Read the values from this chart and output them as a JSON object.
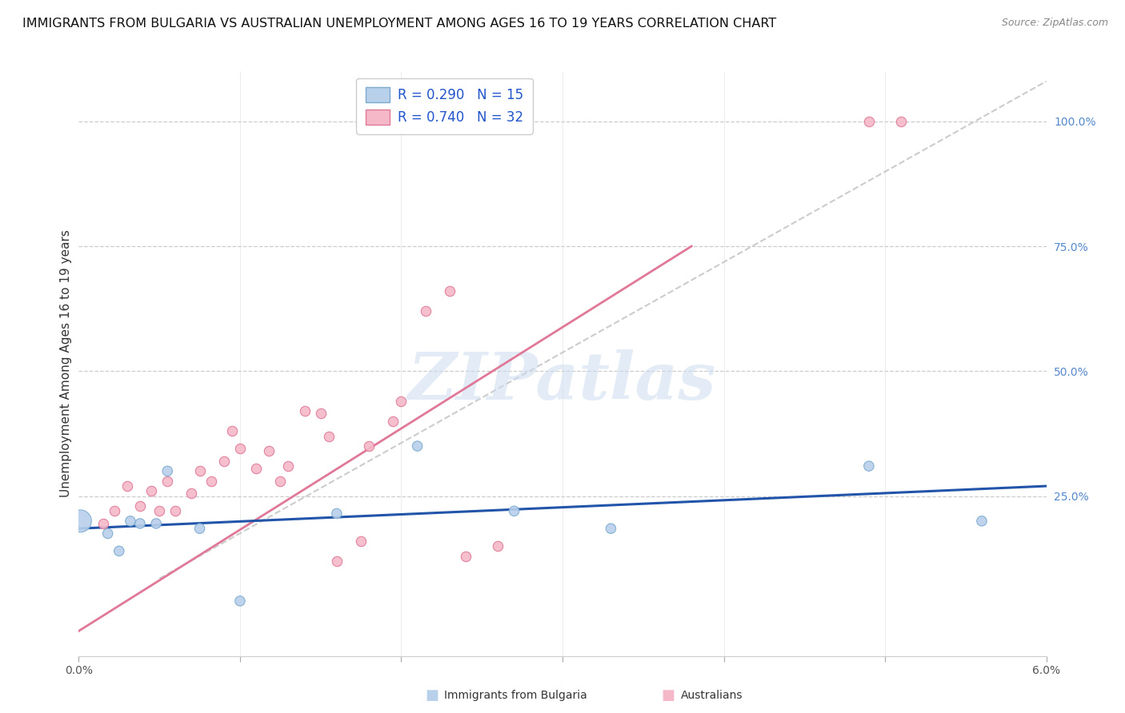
{
  "title": "IMMIGRANTS FROM BULGARIA VS AUSTRALIAN UNEMPLOYMENT AMONG AGES 16 TO 19 YEARS CORRELATION CHART",
  "source": "Source: ZipAtlas.com",
  "ylabel": "Unemployment Among Ages 16 to 19 years",
  "right_yticks": [
    0.0,
    0.25,
    0.5,
    0.75,
    1.0
  ],
  "right_yticklabels": [
    "",
    "25.0%",
    "50.0%",
    "75.0%",
    "100.0%"
  ],
  "xmin": 0.0,
  "xmax": 0.06,
  "ymin": -0.07,
  "ymax": 1.1,
  "legend_entries": [
    {
      "label": "Immigrants from Bulgaria",
      "R": "0.290",
      "N": "15",
      "color": "#b8d0ea",
      "edge_color": "#7aaad0"
    },
    {
      "label": "Australians",
      "R": "0.740",
      "N": "32",
      "color": "#f5b8c8",
      "edge_color": "#e07898"
    }
  ],
  "bulgaria_scatter": {
    "x": [
      0.0001,
      0.0018,
      0.0025,
      0.0032,
      0.0038,
      0.0048,
      0.0055,
      0.0075,
      0.01,
      0.016,
      0.021,
      0.027,
      0.033,
      0.049,
      0.056
    ],
    "y": [
      0.2,
      0.175,
      0.14,
      0.2,
      0.195,
      0.195,
      0.3,
      0.185,
      0.04,
      0.215,
      0.35,
      0.22,
      0.185,
      0.31,
      0.2
    ],
    "sizes": [
      400,
      80,
      80,
      80,
      80,
      80,
      80,
      80,
      80,
      80,
      80,
      80,
      80,
      80,
      80
    ],
    "color": "#b8d0ea",
    "edge_color": "#7aaad0"
  },
  "australians_scatter": {
    "x": [
      0.0015,
      0.0022,
      0.003,
      0.0038,
      0.0045,
      0.005,
      0.0055,
      0.006,
      0.007,
      0.0075,
      0.0082,
      0.009,
      0.0095,
      0.01,
      0.011,
      0.0118,
      0.0125,
      0.013,
      0.014,
      0.015,
      0.0155,
      0.016,
      0.0175,
      0.018,
      0.0195,
      0.02,
      0.0215,
      0.023,
      0.024,
      0.026,
      0.049,
      0.051
    ],
    "y": [
      0.195,
      0.22,
      0.27,
      0.23,
      0.26,
      0.22,
      0.28,
      0.22,
      0.255,
      0.3,
      0.28,
      0.32,
      0.38,
      0.345,
      0.305,
      0.34,
      0.28,
      0.31,
      0.42,
      0.415,
      0.37,
      0.12,
      0.16,
      0.35,
      0.4,
      0.44,
      0.62,
      0.66,
      0.13,
      0.15,
      1.0,
      1.0
    ],
    "size": 80,
    "color": "#f5b8c8",
    "edge_color": "#e07898"
  },
  "blue_trend": {
    "x": [
      0.0,
      0.06
    ],
    "y": [
      0.185,
      0.27
    ]
  },
  "pink_trend": {
    "x": [
      0.0,
      0.038
    ],
    "y": [
      -0.02,
      0.75
    ]
  },
  "diagonal_dashed": {
    "x": [
      0.005,
      0.06
    ],
    "y": [
      0.085,
      1.08
    ]
  },
  "watermark_text": "ZIPatlas",
  "watermark_color": "#ccddf0",
  "bg_color": "#ffffff",
  "title_fontsize": 11.5,
  "axis_label_fontsize": 11,
  "tick_fontsize": 10,
  "legend_fontsize": 12
}
